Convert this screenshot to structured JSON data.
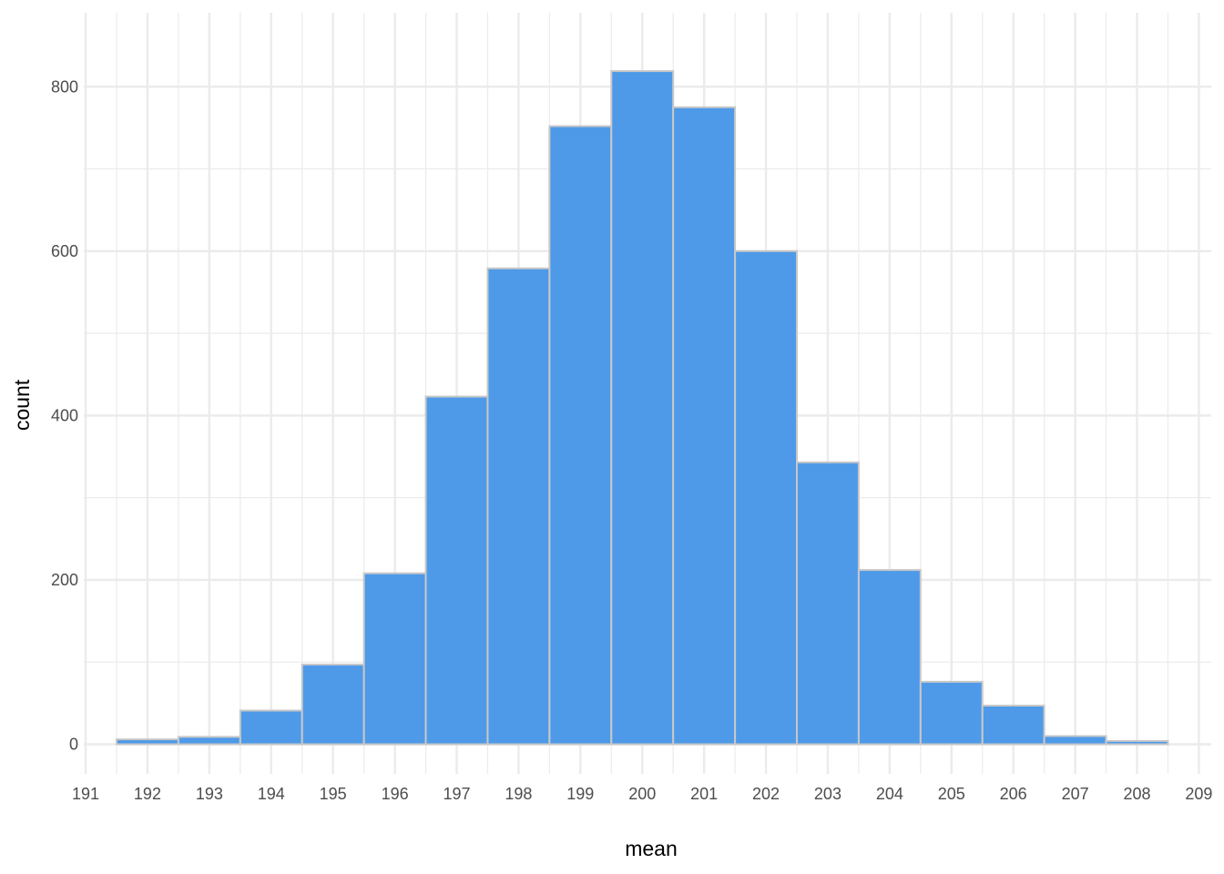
{
  "chart_data": {
    "type": "bar",
    "subtype": "histogram",
    "title": "",
    "xlabel": "mean",
    "ylabel": "count",
    "x_bin_centers": [
      192,
      193,
      194,
      195,
      196,
      197,
      198,
      199,
      200,
      201,
      202,
      203,
      204,
      205,
      206,
      207,
      208
    ],
    "values": [
      6,
      9,
      41,
      97,
      208,
      423,
      579,
      752,
      819,
      775,
      600,
      343,
      212,
      76,
      47,
      10,
      4
    ],
    "bin_width": 1,
    "xlim": [
      190.97,
      209.2
    ],
    "ylim": [
      -36,
      890
    ],
    "x_ticks": [
      191,
      192,
      193,
      194,
      195,
      196,
      197,
      198,
      199,
      200,
      201,
      202,
      203,
      204,
      205,
      206,
      207,
      208,
      209
    ],
    "y_ticks": [
      0,
      200,
      400,
      600,
      800
    ],
    "grid": true,
    "legend": "none",
    "colors": {
      "bar_fill": "#4E9AE8",
      "bar_stroke": "#C8C8C8",
      "grid": "#EBEBEB",
      "tick_text": "#4D4D4D",
      "axis_title": "#000000"
    }
  }
}
